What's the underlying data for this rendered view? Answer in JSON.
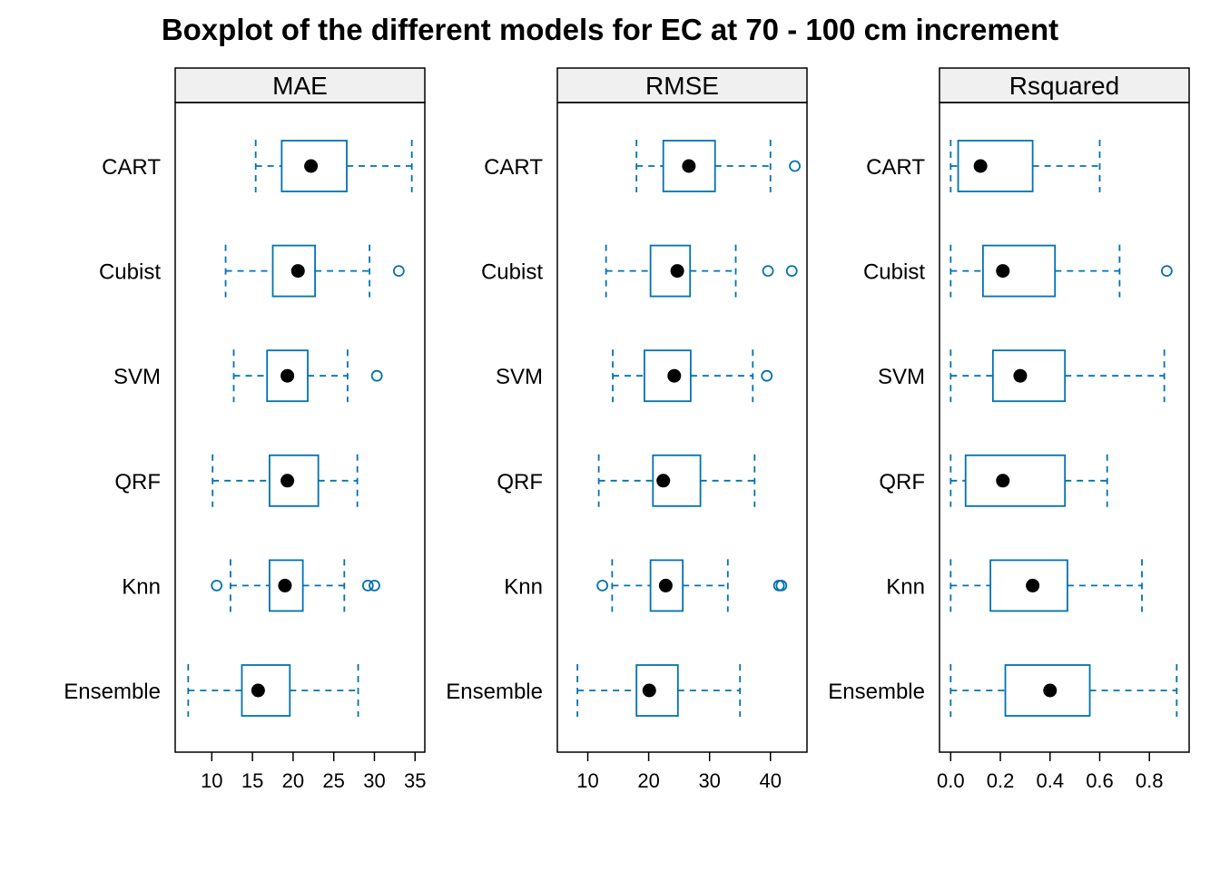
{
  "chart_data": {
    "type": "boxplot",
    "title": "Boxplot of the different models for EC at 70 - 100 cm increment",
    "categories": [
      "CART",
      "Cubist",
      "SVM",
      "QRF",
      "Knn",
      "Ensemble"
    ],
    "colors": {
      "box": "#0072B2",
      "median": "#000000",
      "strip": "#F0F0F0"
    },
    "panels": [
      {
        "name": "MAE",
        "xlim": [
          5.5,
          36.2
        ],
        "ticks": [
          10,
          15,
          20,
          25,
          30,
          35
        ],
        "tick_labels": [
          "10",
          "15",
          "20",
          "25",
          "30",
          "35"
        ],
        "boxes": [
          {
            "category": "CART",
            "min": 15.4,
            "q1": 18.6,
            "median": 22.2,
            "q3": 26.6,
            "max": 34.6,
            "outliers": []
          },
          {
            "category": "Cubist",
            "min": 11.7,
            "q1": 17.5,
            "median": 20.6,
            "q3": 22.7,
            "max": 29.4,
            "outliers": [
              33.0
            ]
          },
          {
            "category": "SVM",
            "min": 12.7,
            "q1": 16.8,
            "median": 19.3,
            "q3": 21.8,
            "max": 26.7,
            "outliers": [
              30.3
            ]
          },
          {
            "category": "QRF",
            "min": 10.1,
            "q1": 17.1,
            "median": 19.3,
            "q3": 23.1,
            "max": 27.9,
            "outliers": []
          },
          {
            "category": "Knn",
            "min": 12.3,
            "q1": 17.1,
            "median": 19.0,
            "q3": 21.2,
            "max": 26.3,
            "outliers": [
              10.6,
              29.2,
              30.0
            ]
          },
          {
            "category": "Ensemble",
            "min": 7.1,
            "q1": 13.7,
            "median": 15.7,
            "q3": 19.6,
            "max": 28.0,
            "outliers": []
          }
        ]
      },
      {
        "name": "RMSE",
        "xlim": [
          5.0,
          46.0
        ],
        "ticks": [
          10,
          20,
          30,
          40
        ],
        "tick_labels": [
          "10",
          "20",
          "30",
          "40"
        ],
        "boxes": [
          {
            "category": "CART",
            "min": 18.0,
            "q1": 22.4,
            "median": 26.6,
            "q3": 30.9,
            "max": 40.0,
            "outliers": [
              44.0
            ]
          },
          {
            "category": "Cubist",
            "min": 13.0,
            "q1": 20.3,
            "median": 24.7,
            "q3": 26.8,
            "max": 34.3,
            "outliers": [
              39.6,
              43.5
            ]
          },
          {
            "category": "SVM",
            "min": 14.1,
            "q1": 19.3,
            "median": 24.2,
            "q3": 26.9,
            "max": 37.1,
            "outliers": [
              39.4
            ]
          },
          {
            "category": "QRF",
            "min": 11.8,
            "q1": 20.7,
            "median": 22.4,
            "q3": 28.5,
            "max": 37.4,
            "outliers": []
          },
          {
            "category": "Knn",
            "min": 14.0,
            "q1": 20.3,
            "median": 22.8,
            "q3": 25.6,
            "max": 33.0,
            "outliers": [
              12.4,
              41.4,
              41.8
            ]
          },
          {
            "category": "Ensemble",
            "min": 8.3,
            "q1": 18.0,
            "median": 20.1,
            "q3": 24.8,
            "max": 35.0,
            "outliers": []
          }
        ]
      },
      {
        "name": "Rsquared",
        "xlim": [
          -0.045,
          0.96
        ],
        "ticks": [
          0.0,
          0.2,
          0.4,
          0.6,
          0.8
        ],
        "tick_labels": [
          "0.0",
          "0.2",
          "0.4",
          "0.6",
          "0.8"
        ],
        "boxes": [
          {
            "category": "CART",
            "min": 0.0,
            "q1": 0.03,
            "median": 0.12,
            "q3": 0.33,
            "max": 0.6,
            "outliers": []
          },
          {
            "category": "Cubist",
            "min": 0.0,
            "q1": 0.13,
            "median": 0.21,
            "q3": 0.42,
            "max": 0.68,
            "outliers": [
              0.87
            ]
          },
          {
            "category": "SVM",
            "min": 0.0,
            "q1": 0.17,
            "median": 0.28,
            "q3": 0.46,
            "max": 0.86,
            "outliers": []
          },
          {
            "category": "QRF",
            "min": 0.0,
            "q1": 0.06,
            "median": 0.21,
            "q3": 0.46,
            "max": 0.63,
            "outliers": []
          },
          {
            "category": "Knn",
            "min": 0.0,
            "q1": 0.16,
            "median": 0.33,
            "q3": 0.47,
            "max": 0.77,
            "outliers": []
          },
          {
            "category": "Ensemble",
            "min": 0.0,
            "q1": 0.22,
            "median": 0.4,
            "q3": 0.56,
            "max": 0.91,
            "outliers": []
          }
        ]
      }
    ]
  }
}
